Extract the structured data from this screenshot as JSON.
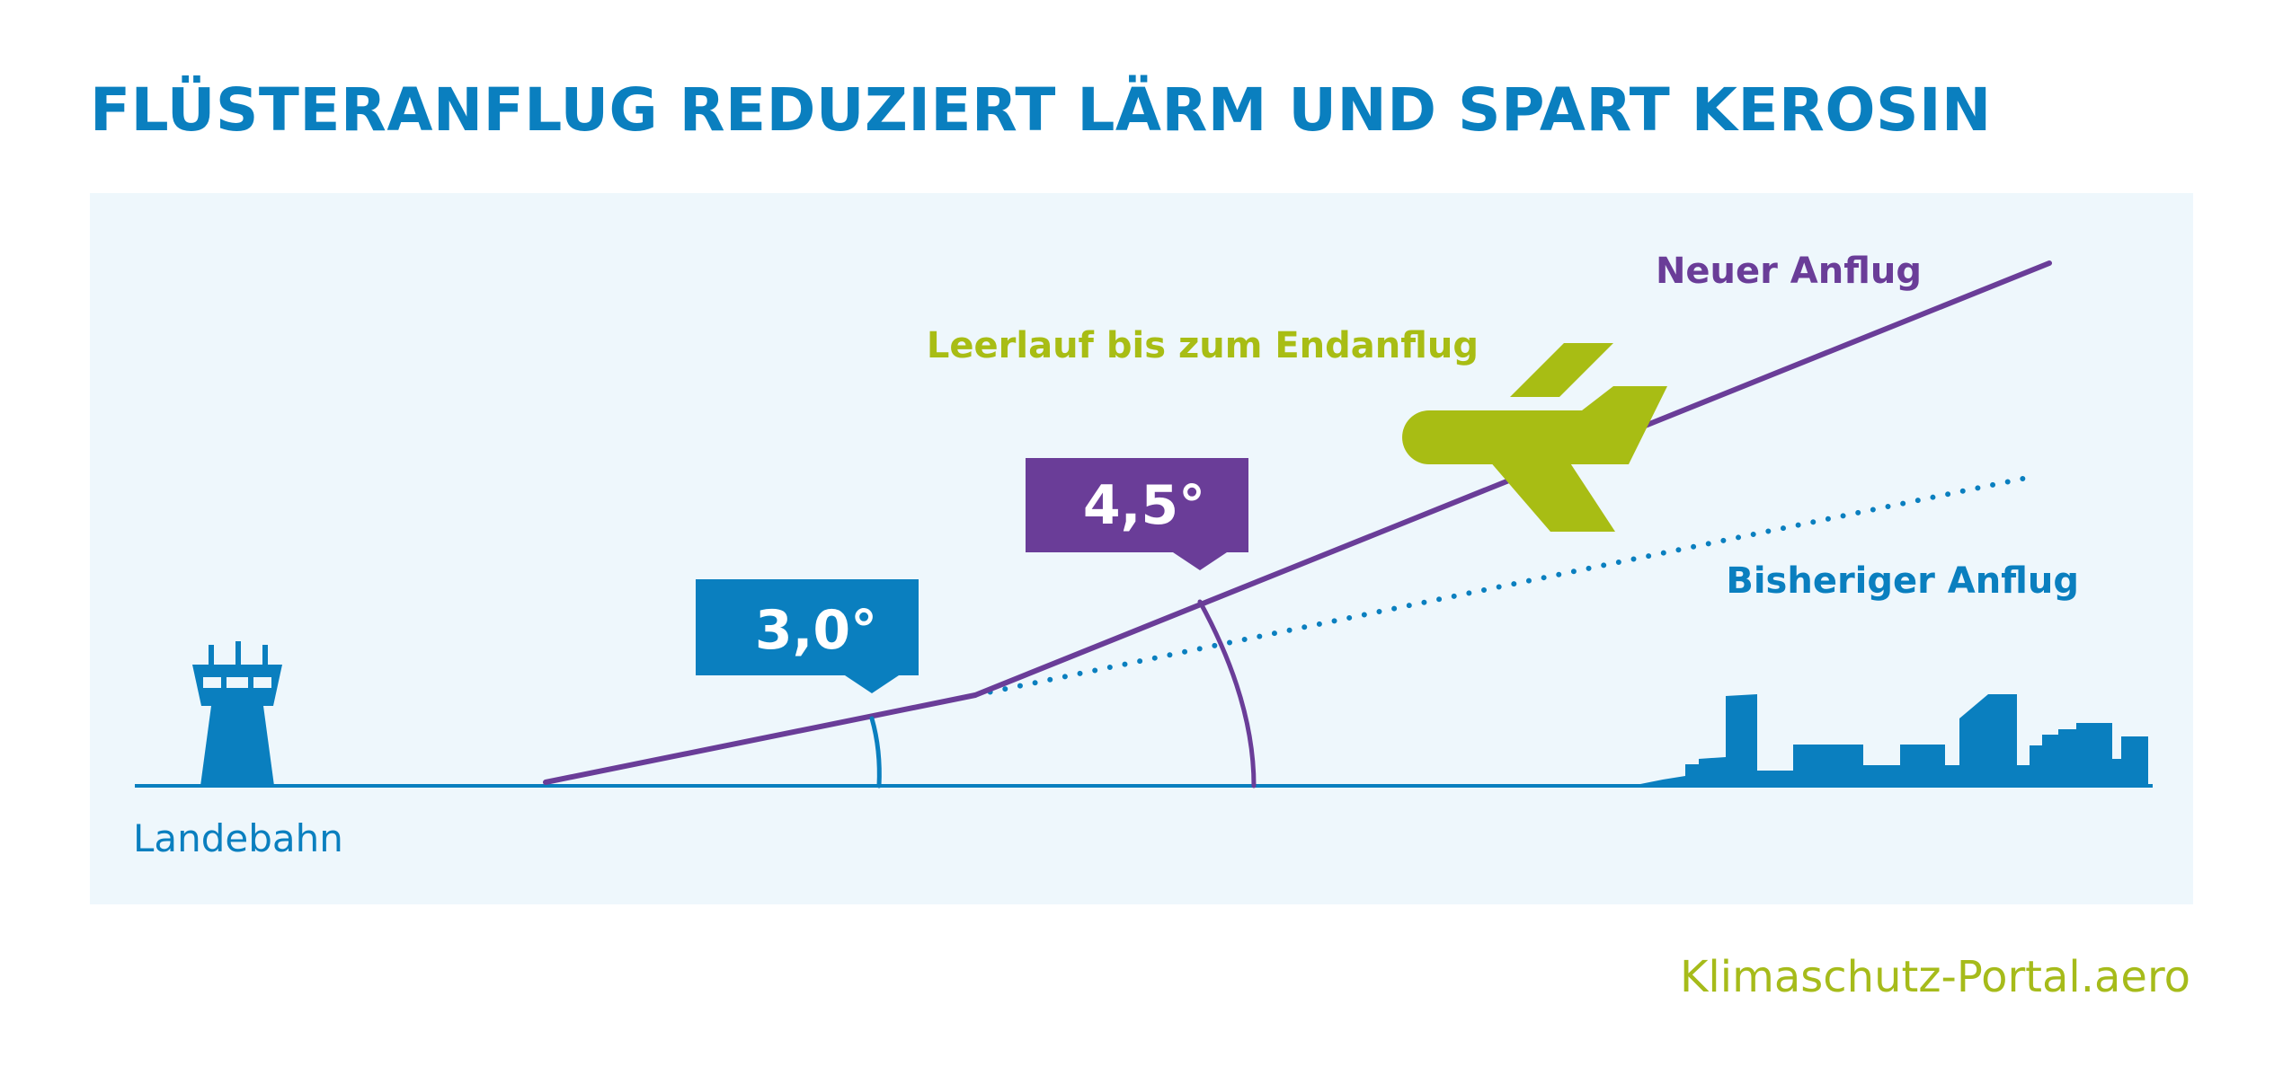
{
  "title": "FLÜSTERANFLUG REDUZIERT LÄRM UND SPART KEROSIN",
  "labels": {
    "new_approach": "Neuer Anflug",
    "idle": "Leerlauf bis zum Endanflug",
    "old_approach": "Bisheriger Anflug",
    "runway": "Landebahn"
  },
  "angles": {
    "old": "3,0°",
    "new": "4,5°"
  },
  "credit": "Klimaschutz-Portal.aero",
  "colors": {
    "blue": "#0a7fbf",
    "purple": "#6a3d98",
    "green": "#a8bd14",
    "panel": "#eef7fc"
  },
  "icons": [
    "control-tower-icon",
    "airplane-icon",
    "city-skyline-icon"
  ]
}
